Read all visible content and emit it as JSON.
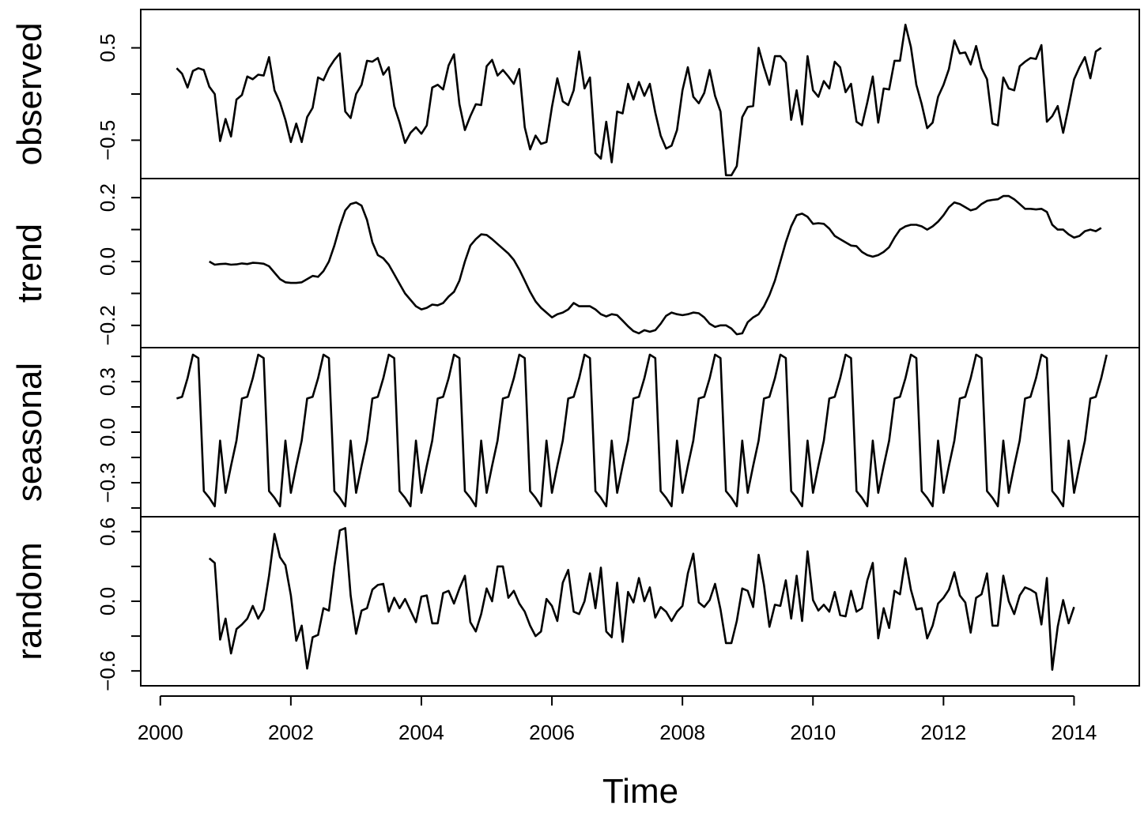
{
  "chart_data": {
    "type": "line",
    "xlabel": "Time",
    "x_ticks": [
      2000,
      2002,
      2004,
      2006,
      2008,
      2010,
      2012,
      2014
    ],
    "x_tick_labels": [
      "2000",
      "2002",
      "2004",
      "2006",
      "2008",
      "2010",
      "2012",
      "2014"
    ],
    "xlim": [
      1999.7,
      2015.0
    ],
    "panels": [
      {
        "name": "observed",
        "ylabel": "observed",
        "ylim": [
          -0.83,
          0.83
        ],
        "y_ticks": [
          -0.5,
          0.0,
          0.5
        ],
        "y_tick_labels": [
          "−0.5",
          "",
          "0.5"
        ],
        "x_start": 2000.25,
        "step": 0.0833333,
        "values": [
          0.28,
          0.22,
          0.07,
          0.25,
          0.28,
          0.26,
          0.08,
          0.0,
          -0.51,
          -0.27,
          -0.46,
          -0.06,
          -0.01,
          0.19,
          0.16,
          0.21,
          0.2,
          0.4,
          0.04,
          -0.09,
          -0.28,
          -0.52,
          -0.32,
          -0.52,
          -0.25,
          -0.15,
          0.18,
          0.15,
          0.28,
          0.37,
          0.44,
          -0.19,
          -0.26,
          0.0,
          0.1,
          0.36,
          0.35,
          0.39,
          0.21,
          0.29,
          -0.13,
          -0.31,
          -0.53,
          -0.42,
          -0.36,
          -0.43,
          -0.34,
          0.07,
          0.1,
          0.05,
          0.31,
          0.43,
          -0.11,
          -0.39,
          -0.24,
          -0.11,
          -0.12,
          0.3,
          0.37,
          0.2,
          0.26,
          0.19,
          0.11,
          0.27,
          -0.36,
          -0.6,
          -0.45,
          -0.54,
          -0.52,
          -0.14,
          0.17,
          -0.08,
          -0.12,
          0.04,
          0.46,
          0.06,
          0.18,
          -0.64,
          -0.7,
          -0.3,
          -0.74,
          -0.19,
          -0.21,
          0.11,
          -0.06,
          0.13,
          -0.02,
          0.11,
          -0.2,
          -0.45,
          -0.59,
          -0.56,
          -0.39,
          0.04,
          0.29,
          -0.03,
          -0.1,
          0.01,
          0.26,
          -0.02,
          -0.19,
          -0.88,
          -0.88,
          -0.78,
          -0.25,
          -0.14,
          -0.13,
          0.5,
          0.29,
          0.1,
          0.41,
          0.41,
          0.34,
          -0.28,
          0.04,
          -0.33,
          0.41,
          0.04,
          -0.03,
          0.14,
          0.06,
          0.35,
          0.29,
          0.02,
          0.11,
          -0.3,
          -0.34,
          -0.09,
          0.19,
          -0.31,
          0.06,
          0.05,
          0.36,
          0.36,
          0.75,
          0.51,
          0.1,
          -0.11,
          -0.37,
          -0.31,
          -0.03,
          0.1,
          0.27,
          0.58,
          0.44,
          0.45,
          0.32,
          0.52,
          0.28,
          0.16,
          -0.32,
          -0.34,
          0.18,
          0.06,
          0.04,
          0.3,
          0.35,
          0.39,
          0.38,
          0.53,
          -0.3,
          -0.24,
          -0.13,
          -0.42,
          -0.14,
          0.16,
          0.29,
          0.4,
          0.17,
          0.46,
          0.5
        ]
      },
      {
        "name": "trend",
        "ylabel": "trend",
        "ylim": [
          -0.245,
          0.235
        ],
        "y_ticks": [
          -0.2,
          -0.1,
          0.0,
          0.1,
          0.2
        ],
        "y_tick_labels": [
          "−0.2",
          "",
          "0.0",
          "",
          "0.2"
        ],
        "x_start": 2000.75,
        "step": 0.0833333,
        "values": [
          0.0,
          -0.01,
          -0.008,
          -0.007,
          -0.01,
          -0.009,
          -0.006,
          -0.008,
          -0.004,
          -0.005,
          -0.007,
          -0.015,
          -0.035,
          -0.055,
          -0.065,
          -0.067,
          -0.067,
          -0.065,
          -0.055,
          -0.045,
          -0.048,
          -0.03,
          0.0,
          0.05,
          0.11,
          0.16,
          0.18,
          0.185,
          0.175,
          0.13,
          0.06,
          0.02,
          0.01,
          -0.01,
          -0.04,
          -0.07,
          -0.1,
          -0.12,
          -0.14,
          -0.15,
          -0.145,
          -0.135,
          -0.137,
          -0.13,
          -0.11,
          -0.095,
          -0.06,
          0.0,
          0.05,
          0.07,
          0.085,
          0.083,
          0.07,
          0.055,
          0.04,
          0.025,
          0.005,
          -0.025,
          -0.06,
          -0.095,
          -0.125,
          -0.145,
          -0.16,
          -0.175,
          -0.165,
          -0.16,
          -0.15,
          -0.13,
          -0.14,
          -0.14,
          -0.14,
          -0.15,
          -0.165,
          -0.172,
          -0.165,
          -0.168,
          -0.185,
          -0.203,
          -0.218,
          -0.225,
          -0.215,
          -0.22,
          -0.215,
          -0.195,
          -0.17,
          -0.16,
          -0.165,
          -0.168,
          -0.165,
          -0.16,
          -0.162,
          -0.175,
          -0.195,
          -0.205,
          -0.2,
          -0.2,
          -0.21,
          -0.228,
          -0.225,
          -0.19,
          -0.175,
          -0.165,
          -0.14,
          -0.105,
          -0.06,
          0.0,
          0.06,
          0.11,
          0.145,
          0.15,
          0.14,
          0.118,
          0.12,
          0.118,
          0.103,
          0.08,
          0.07,
          0.06,
          0.05,
          0.048,
          0.03,
          0.02,
          0.015,
          0.02,
          0.03,
          0.045,
          0.075,
          0.1,
          0.11,
          0.115,
          0.115,
          0.11,
          0.1,
          0.11,
          0.125,
          0.145,
          0.17,
          0.185,
          0.18,
          0.17,
          0.16,
          0.165,
          0.18,
          0.19,
          0.193,
          0.195,
          0.205,
          0.205,
          0.195,
          0.18,
          0.165,
          0.165,
          0.163,
          0.165,
          0.155,
          0.115,
          0.1,
          0.1,
          0.085,
          0.075,
          0.08,
          0.095,
          0.1,
          0.095,
          0.105
        ]
      },
      {
        "name": "seasonal",
        "ylabel": "seasonal",
        "ylim": [
          -0.455,
          0.455
        ],
        "y_ticks": [
          -0.45,
          -0.3,
          -0.15,
          0.0,
          0.15,
          0.3,
          0.45
        ],
        "y_tick_labels": [
          "",
          "−0.3",
          "",
          "0.0",
          "",
          "0.3",
          ""
        ],
        "x_start": 2000.25,
        "step": 0.0833333,
        "period": 12,
        "start_phase": 3,
        "cycle": [
          -0.36,
          -0.2,
          -0.05,
          0.2,
          0.21,
          0.32,
          0.46,
          0.44,
          -0.35,
          -0.39,
          -0.44,
          -0.05
        ],
        "years": 14.25
      },
      {
        "name": "random",
        "ylabel": "random",
        "ylim": [
          -0.66,
          0.66
        ],
        "y_ticks": [
          -0.6,
          -0.3,
          0.0,
          0.3,
          0.6
        ],
        "y_tick_labels": [
          "−0.6",
          "",
          "0.0",
          "",
          "0.6"
        ],
        "x_start": 2000.75,
        "step": 0.0833333,
        "values": [
          0.37,
          0.33,
          -0.33,
          -0.15,
          -0.45,
          -0.24,
          -0.2,
          -0.15,
          -0.04,
          -0.15,
          -0.07,
          0.22,
          0.58,
          0.38,
          0.31,
          0.05,
          -0.34,
          -0.21,
          -0.58,
          -0.31,
          -0.29,
          -0.06,
          -0.08,
          0.3,
          0.61,
          0.63,
          0.05,
          -0.28,
          -0.08,
          -0.06,
          0.1,
          0.14,
          0.15,
          -0.09,
          0.03,
          -0.06,
          0.02,
          -0.08,
          -0.18,
          0.04,
          0.05,
          -0.19,
          -0.19,
          0.07,
          0.09,
          -0.02,
          0.11,
          0.22,
          -0.18,
          -0.26,
          -0.11,
          0.11,
          0.0,
          0.3,
          0.3,
          0.03,
          0.09,
          -0.02,
          -0.09,
          -0.21,
          -0.3,
          -0.26,
          0.02,
          -0.04,
          -0.17,
          0.16,
          0.27,
          -0.09,
          -0.11,
          0.0,
          0.24,
          -0.06,
          0.29,
          -0.26,
          -0.31,
          0.16,
          -0.35,
          0.08,
          -0.01,
          0.2,
          0.0,
          0.12,
          -0.14,
          -0.05,
          -0.09,
          -0.17,
          -0.09,
          -0.04,
          0.24,
          0.41,
          -0.01,
          -0.05,
          0.01,
          0.15,
          -0.07,
          -0.36,
          -0.36,
          -0.17,
          0.11,
          0.09,
          -0.05,
          0.4,
          0.14,
          -0.22,
          -0.03,
          -0.04,
          0.18,
          -0.15,
          0.22,
          -0.17,
          0.43,
          0.01,
          -0.08,
          -0.03,
          -0.09,
          0.08,
          -0.12,
          -0.13,
          0.09,
          -0.09,
          -0.06,
          0.18,
          0.33,
          -0.32,
          -0.06,
          -0.23,
          0.09,
          0.06,
          0.37,
          0.1,
          -0.07,
          -0.06,
          -0.32,
          -0.21,
          -0.02,
          0.03,
          0.1,
          0.25,
          0.05,
          -0.01,
          -0.27,
          0.03,
          0.06,
          0.24,
          -0.21,
          -0.21,
          0.22,
          0.0,
          -0.11,
          0.05,
          0.12,
          0.1,
          0.07,
          -0.2,
          0.2,
          -0.59,
          -0.22,
          0.01,
          -0.19,
          -0.05
        ]
      }
    ]
  }
}
